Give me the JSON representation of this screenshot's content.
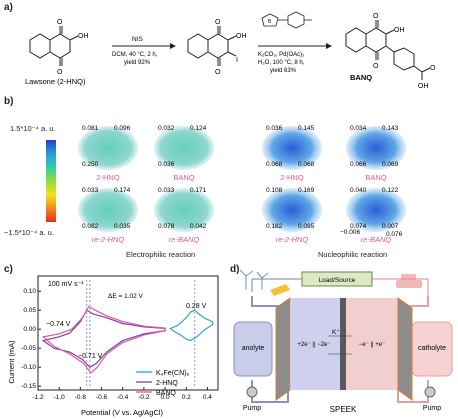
{
  "panel_a": {
    "label": "a)",
    "compound1": "Lawsone (2-HNQ)",
    "arrow1": {
      "reagent": "NIS",
      "cond1": "DCM, 40 °C, 2 h,",
      "cond2": "yield 92%"
    },
    "arrow2": {
      "reagent1": "K₂CO₃, Pd(OAc)₂",
      "reagent2": "H₂O, 100 °C, 8 h,",
      "cond": "yield 63%"
    },
    "compound3": "BANQ",
    "atom_labels": {
      "O": "O",
      "OH": "OH",
      "I": "I",
      "B": "B"
    }
  },
  "panel_b": {
    "label": "b)",
    "scale_max": "1.5*10⁻⁴  a. u.",
    "scale_min": "−1.5*10⁻⁴  a. u.",
    "caption_left": "Electrophilic reaction",
    "caption_right": "Nucleophilic reaction",
    "molecules": [
      {
        "name": "2-HNQ",
        "v": [
          "0.081",
          "0.096",
          "0.250"
        ]
      },
      {
        "name": "BANQ",
        "v": [
          "0.032",
          "0.124",
          "0.036"
        ]
      },
      {
        "name": "2-HNQ",
        "v": [
          "0.036",
          "0.145",
          "0.068",
          "0.068"
        ]
      },
      {
        "name": "BANQ",
        "v": [
          "0.034",
          "0.143",
          "0.066",
          "0.069"
        ]
      },
      {
        "name": "re-2-HNQ",
        "v": [
          "0.033",
          "0.174",
          "0.082",
          "0.035"
        ]
      },
      {
        "name": "re-BANQ",
        "v": [
          "0.033",
          "0.171",
          "0.078",
          "0.042"
        ]
      },
      {
        "name": "re-2-HNQ",
        "v": [
          "0.108",
          "0.169",
          "0.182",
          "0.095"
        ]
      },
      {
        "name": "re-BANQ",
        "v": [
          "0.040",
          "0.122",
          "0.074",
          "0.007",
          "−0.006",
          "0.076"
        ]
      }
    ]
  },
  "panel_c": {
    "label": "c)",
    "scan_rate": "100 mV s⁻¹",
    "delta_e": "ΔE = 1.02 V",
    "annot_1": "−0.74 V",
    "annot_2": "−0.71 V",
    "annot_3": "0.28 V",
    "legend": [
      "K₄Fe(CN)₆",
      "2-HNQ",
      "BANQ"
    ]
  },
  "panel_d": {
    "label": "d)",
    "load": "Load/Source",
    "anolyte": "anolyte",
    "catholyte": "catholyte",
    "pump_left": "Pump",
    "pump_right": "Pump",
    "membrane": "SPEEK",
    "ion": "K⁺",
    "e_left": "+2e⁻ || −2e⁻",
    "e_right": "−e⁻ || +e⁻"
  },
  "chart_data": {
    "type": "line",
    "title": "",
    "xlabel": "Potential (V vs. Ag/AgCl)",
    "ylabel": "Current (mA)",
    "xlim": [
      -1.2,
      0.5
    ],
    "ylim": [
      -0.16,
      0.14
    ],
    "xticks": [
      -1.2,
      -1.0,
      -0.8,
      -0.6,
      -0.4,
      -0.2,
      0.0,
      0.2,
      0.4
    ],
    "yticks": [
      -0.15,
      -0.1,
      -0.05,
      0.0,
      0.05,
      0.1
    ],
    "series": [
      {
        "name": "K₄Fe(CN)₆",
        "color": "#2aa6c9",
        "x": [
          0.05,
          0.12,
          0.2,
          0.24,
          0.28,
          0.32,
          0.38,
          0.45,
          0.45,
          0.38,
          0.3,
          0.24,
          0.2,
          0.14,
          0.08,
          0.05
        ],
        "y": [
          0.002,
          0.01,
          0.03,
          0.045,
          0.05,
          0.04,
          0.028,
          0.02,
          0.012,
          0.0,
          -0.02,
          -0.03,
          -0.026,
          -0.014,
          -0.005,
          0.002
        ]
      },
      {
        "name": "2-HNQ",
        "color": "#7b3fb0",
        "x": [
          -1.15,
          -1.0,
          -0.9,
          -0.8,
          -0.74,
          -0.68,
          -0.55,
          -0.4,
          -0.2,
          0.0,
          0.0,
          -0.2,
          -0.4,
          -0.55,
          -0.65,
          -0.71,
          -0.78,
          -0.9,
          -1.05,
          -1.15
        ],
        "y": [
          -0.03,
          -0.02,
          -0.01,
          0.02,
          0.05,
          0.04,
          0.03,
          0.015,
          0.006,
          0.002,
          -0.004,
          -0.012,
          -0.03,
          -0.06,
          -0.09,
          -0.1,
          -0.08,
          -0.06,
          -0.05,
          -0.03
        ]
      },
      {
        "name": "BANQ",
        "color": "#e0579b",
        "x": [
          -1.15,
          -1.0,
          -0.88,
          -0.78,
          -0.72,
          -0.66,
          -0.55,
          -0.4,
          -0.2,
          0.0,
          0.0,
          -0.2,
          -0.4,
          -0.55,
          -0.64,
          -0.7,
          -0.77,
          -0.9,
          -1.05,
          -1.15
        ],
        "y": [
          -0.02,
          -0.012,
          0.0,
          0.03,
          0.06,
          0.05,
          0.035,
          0.02,
          0.008,
          0.003,
          -0.004,
          -0.015,
          -0.035,
          -0.065,
          -0.1,
          -0.115,
          -0.09,
          -0.065,
          -0.045,
          -0.02
        ]
      }
    ]
  }
}
